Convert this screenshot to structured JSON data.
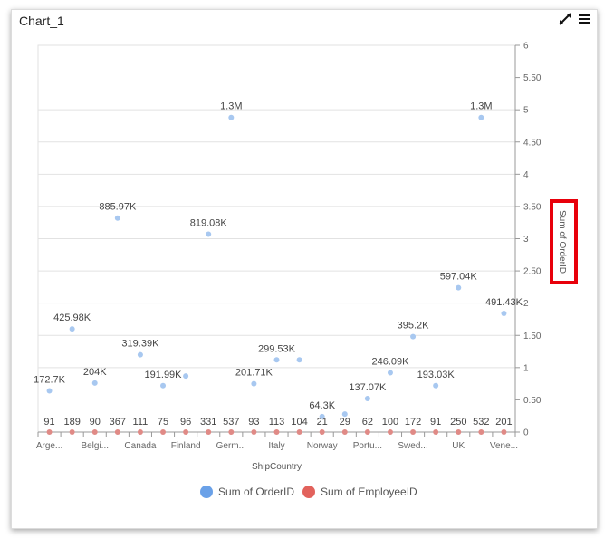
{
  "widget": {
    "title": "Chart_1"
  },
  "icons": {
    "expand": "expand-icon",
    "menu": "hamburger-menu-icon"
  },
  "colors": {
    "orderid": "#a8c8f0",
    "employeeid": "#e08a86",
    "legend_orderid": "#6aa1e8",
    "legend_employeeid": "#e2625c",
    "highlight": "#e8000b"
  },
  "chart_data": {
    "type": "scatter",
    "categories": [
      "Arge...",
      "Belgi...",
      "Canada",
      "Finland",
      "Germ...",
      "Italy",
      "Norway",
      "Portu...",
      "Swed...",
      "UK",
      "Vene..."
    ],
    "xlabel": "ShipCountry",
    "y2label": "Sum of OrderID",
    "y2lim": [
      0,
      6
    ],
    "y2ticks": [
      "0",
      "0.50",
      "1",
      "1.50",
      "2",
      "2.50",
      "3",
      "3.50",
      "4",
      "4.50",
      "5",
      "5.50",
      "6"
    ],
    "series": [
      {
        "name": "Sum of OrderID",
        "points": [
          {
            "pos": 0,
            "value": 0.64,
            "label": "172.7K"
          },
          {
            "pos": 1,
            "value": 1.6,
            "label": "425.98K"
          },
          {
            "pos": 2,
            "value": 0.76,
            "label": "204K"
          },
          {
            "pos": 3,
            "value": 3.32,
            "label": "885.97K"
          },
          {
            "pos": 4,
            "value": 1.2,
            "label": "319.39K"
          },
          {
            "pos": 5,
            "value": 0.72,
            "label": "191.99K"
          },
          {
            "pos": 6,
            "value": 0.87,
            "label": ""
          },
          {
            "pos": 7,
            "value": 3.07,
            "label": "819.08K"
          },
          {
            "pos": 8,
            "value": 4.88,
            "label": "1.3M"
          },
          {
            "pos": 9,
            "value": 0.75,
            "label": "201.71K"
          },
          {
            "pos": 10,
            "value": 1.12,
            "label": "299.53K"
          },
          {
            "pos": 11,
            "value": 1.12,
            "label": ""
          },
          {
            "pos": 12,
            "value": 0.24,
            "label": "64.3K"
          },
          {
            "pos": 13,
            "value": 0.28,
            "label": ""
          },
          {
            "pos": 14,
            "value": 0.52,
            "label": "137.07K"
          },
          {
            "pos": 15,
            "value": 0.92,
            "label": "246.09K"
          },
          {
            "pos": 16,
            "value": 1.48,
            "label": "395.2K"
          },
          {
            "pos": 17,
            "value": 0.72,
            "label": "193.03K"
          },
          {
            "pos": 18,
            "value": 2.24,
            "label": "597.04K"
          },
          {
            "pos": 19,
            "value": 4.88,
            "label": "1.3M"
          },
          {
            "pos": 20,
            "value": 1.84,
            "label": "491.43K"
          }
        ]
      },
      {
        "name": "Sum of EmployeeID",
        "points": [
          {
            "pos": 0,
            "value": 91,
            "label": "91"
          },
          {
            "pos": 1,
            "value": 189,
            "label": "189"
          },
          {
            "pos": 2,
            "value": 90,
            "label": "90"
          },
          {
            "pos": 3,
            "value": 367,
            "label": "367"
          },
          {
            "pos": 4,
            "value": 111,
            "label": "111"
          },
          {
            "pos": 5,
            "value": 75,
            "label": "75"
          },
          {
            "pos": 6,
            "value": 96,
            "label": "96"
          },
          {
            "pos": 7,
            "value": 331,
            "label": "331"
          },
          {
            "pos": 8,
            "value": 537,
            "label": "537"
          },
          {
            "pos": 9,
            "value": 93,
            "label": "93"
          },
          {
            "pos": 10,
            "value": 113,
            "label": "113"
          },
          {
            "pos": 11,
            "value": 104,
            "label": "104"
          },
          {
            "pos": 12,
            "value": 21,
            "label": "21"
          },
          {
            "pos": 13,
            "value": 29,
            "label": "29"
          },
          {
            "pos": 14,
            "value": 62,
            "label": "62"
          },
          {
            "pos": 15,
            "value": 100,
            "label": "100"
          },
          {
            "pos": 16,
            "value": 172,
            "label": "172"
          },
          {
            "pos": 17,
            "value": 91,
            "label": "91"
          },
          {
            "pos": 18,
            "value": 250,
            "label": "250"
          },
          {
            "pos": 19,
            "value": 532,
            "label": "532"
          },
          {
            "pos": 20,
            "value": 201,
            "label": "201"
          }
        ]
      }
    ],
    "legend_position": "bottom",
    "grid": true
  }
}
